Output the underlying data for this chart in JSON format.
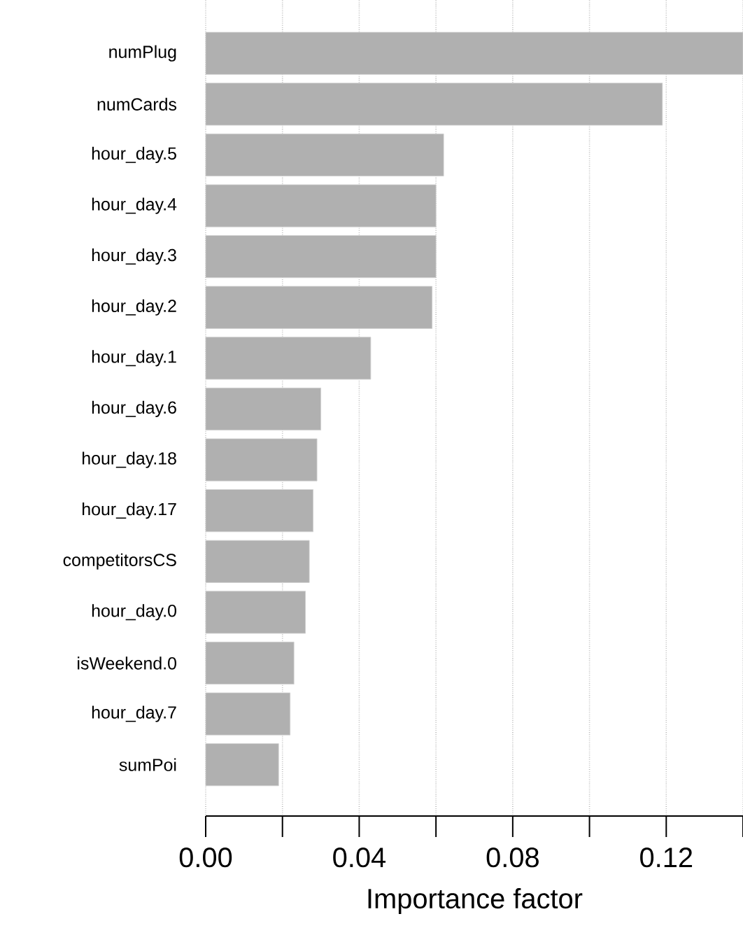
{
  "chart_data": {
    "type": "bar",
    "orientation": "horizontal",
    "categories": [
      "numPlug",
      "numCards",
      "hour_day.5",
      "hour_day.4",
      "hour_day.3",
      "hour_day.2",
      "hour_day.1",
      "hour_day.6",
      "hour_day.18",
      "hour_day.17",
      "competitorsCS",
      "hour_day.0",
      "isWeekend.0",
      "hour_day.7",
      "sumPoi"
    ],
    "values": [
      0.14,
      0.119,
      0.062,
      0.06,
      0.06,
      0.059,
      0.043,
      0.03,
      0.029,
      0.028,
      0.027,
      0.026,
      0.023,
      0.022,
      0.019
    ],
    "color": "#b0b0b0",
    "xlabel": "Importance factor",
    "xlim": [
      0,
      0.14
    ],
    "xticks": [
      {
        "value": 0,
        "label": "0.00"
      },
      {
        "value": 0.02,
        "label": null
      },
      {
        "value": 0.04,
        "label": "0.04"
      },
      {
        "value": 0.06,
        "label": null
      },
      {
        "value": 0.08,
        "label": "0.08"
      },
      {
        "value": 0.1,
        "label": null
      },
      {
        "value": 0.12,
        "label": "0.12"
      },
      {
        "value": 0.14,
        "label": null
      }
    ],
    "grid": "x"
  }
}
